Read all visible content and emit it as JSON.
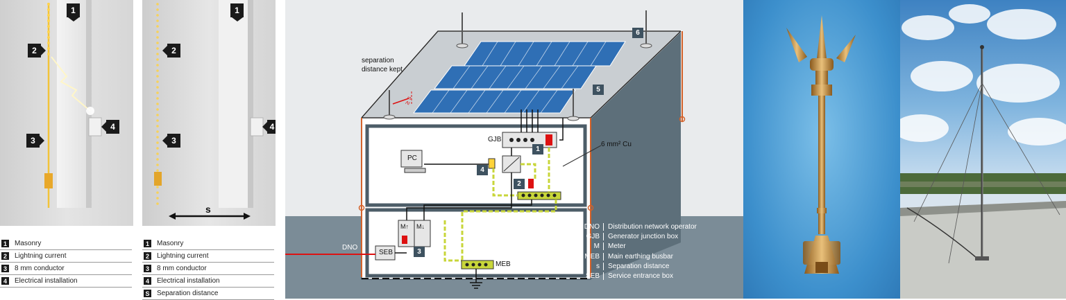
{
  "panel1": {
    "badges": [
      "1",
      "2",
      "3",
      "4"
    ],
    "legend": [
      {
        "num": "1",
        "text": "Masonry"
      },
      {
        "num": "2",
        "text": "Lightning current"
      },
      {
        "num": "3",
        "text": "8 mm conductor"
      },
      {
        "num": "4",
        "text": "Electrical installation"
      }
    ]
  },
  "panel2": {
    "badges": [
      "1",
      "2",
      "3",
      "4"
    ],
    "distance_label": "s",
    "legend": [
      {
        "num": "1",
        "text": "Masonry"
      },
      {
        "num": "2",
        "text": "Lightning current"
      },
      {
        "num": "3",
        "text": "8 mm conductor"
      },
      {
        "num": "4",
        "text": "Electrical installation"
      },
      {
        "num": "S",
        "text": "Separation distance"
      }
    ]
  },
  "diagram": {
    "separation_line1": "separation",
    "separation_line2": "distance kept",
    "ge_s": "≥ s",
    "gjb": "GJB",
    "pc": "PC",
    "cu_label": "6 mm² Cu",
    "dno": "DNO",
    "seb": "SEB",
    "meb": "MEB",
    "meter1": "M↑",
    "meter2": "M↓",
    "numbers": [
      "1",
      "2",
      "3",
      "4",
      "5",
      "6"
    ],
    "key": [
      {
        "k": "DNO",
        "v": "Distribution network operator"
      },
      {
        "k": "GJB",
        "v": "Generator junction box"
      },
      {
        "k": "M",
        "v": "Meter"
      },
      {
        "k": "MEB",
        "v": "Main earthing busbar"
      },
      {
        "k": "s",
        "v": "Separation distance"
      },
      {
        "k": "SEB",
        "v": "Service entrance box"
      }
    ],
    "colors": {
      "sky_band": "#e8eaec",
      "ground": "#7b8c97",
      "wall": "#5d6f7a",
      "panel_blue": "#2f6fb5",
      "earth_green": "#c8d63a",
      "conductor": "#d4622a"
    }
  },
  "photo1": {
    "subject": "lightning-rod-air-terminal"
  },
  "photo2": {
    "subject": "lightning-mast-on-rooftop"
  }
}
